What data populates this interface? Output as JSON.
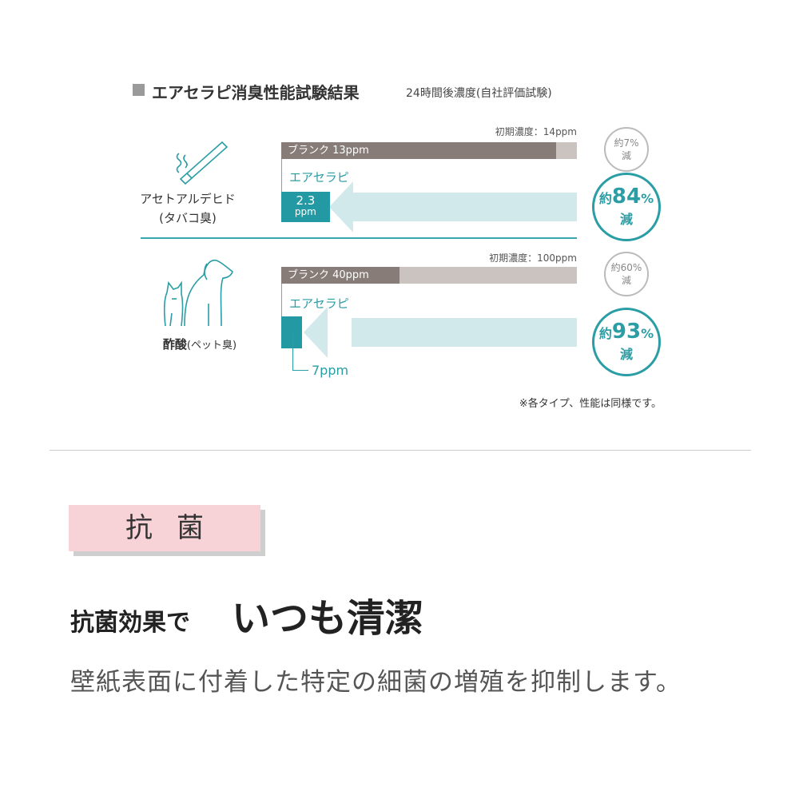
{
  "header": {
    "title": "エアセラピ消臭性能試験結果",
    "subtitle": "24時間後濃度(自社評価試験)"
  },
  "colors": {
    "blank": "#877c77",
    "track": "#cbc3bf",
    "product": "#2299a3",
    "arrow": "#d2e9ec",
    "accent": "#2a9da5",
    "pink": "#f7d3d7"
  },
  "chart_data": [
    {
      "type": "bar",
      "name_label": "アセトアルデヒド",
      "sub_label": "(タバコ臭)",
      "icon": "cigarette-icon",
      "initial_label": "初期濃度：14ppm",
      "initial": 14,
      "blank": {
        "label": "ブランク 13ppm",
        "value": 13,
        "reduction": "約7%",
        "reduction_unit": "減"
      },
      "product": {
        "label": "エアセラピ",
        "value": 2.3,
        "value_label": "2.3",
        "unit": "ppm",
        "reduction_prefix": "約",
        "reduction": "84",
        "pct": "%",
        "reduction_unit": "減"
      }
    },
    {
      "type": "bar",
      "name_label": "酢酸",
      "sub_label": "(ペット臭)",
      "icon": "dog-cat-icon",
      "initial_label": "初期濃度：100ppm",
      "initial": 100,
      "blank": {
        "label": "ブランク 40ppm",
        "value": 40,
        "reduction": "約60%",
        "reduction_unit": "減"
      },
      "product": {
        "label": "エアセラピ",
        "value": 7,
        "value_label": "7ppm",
        "reduction_prefix": "約",
        "reduction": "93",
        "pct": "%",
        "reduction_unit": "減"
      }
    }
  ],
  "note": "※各タイプ、性能は同様です。",
  "section": {
    "badge": "抗菌",
    "headline_small": "抗菌効果で",
    "headline_large": "いつも清潔",
    "body": "壁紙表面に付着した特定の細菌の増殖を抑制します。"
  }
}
